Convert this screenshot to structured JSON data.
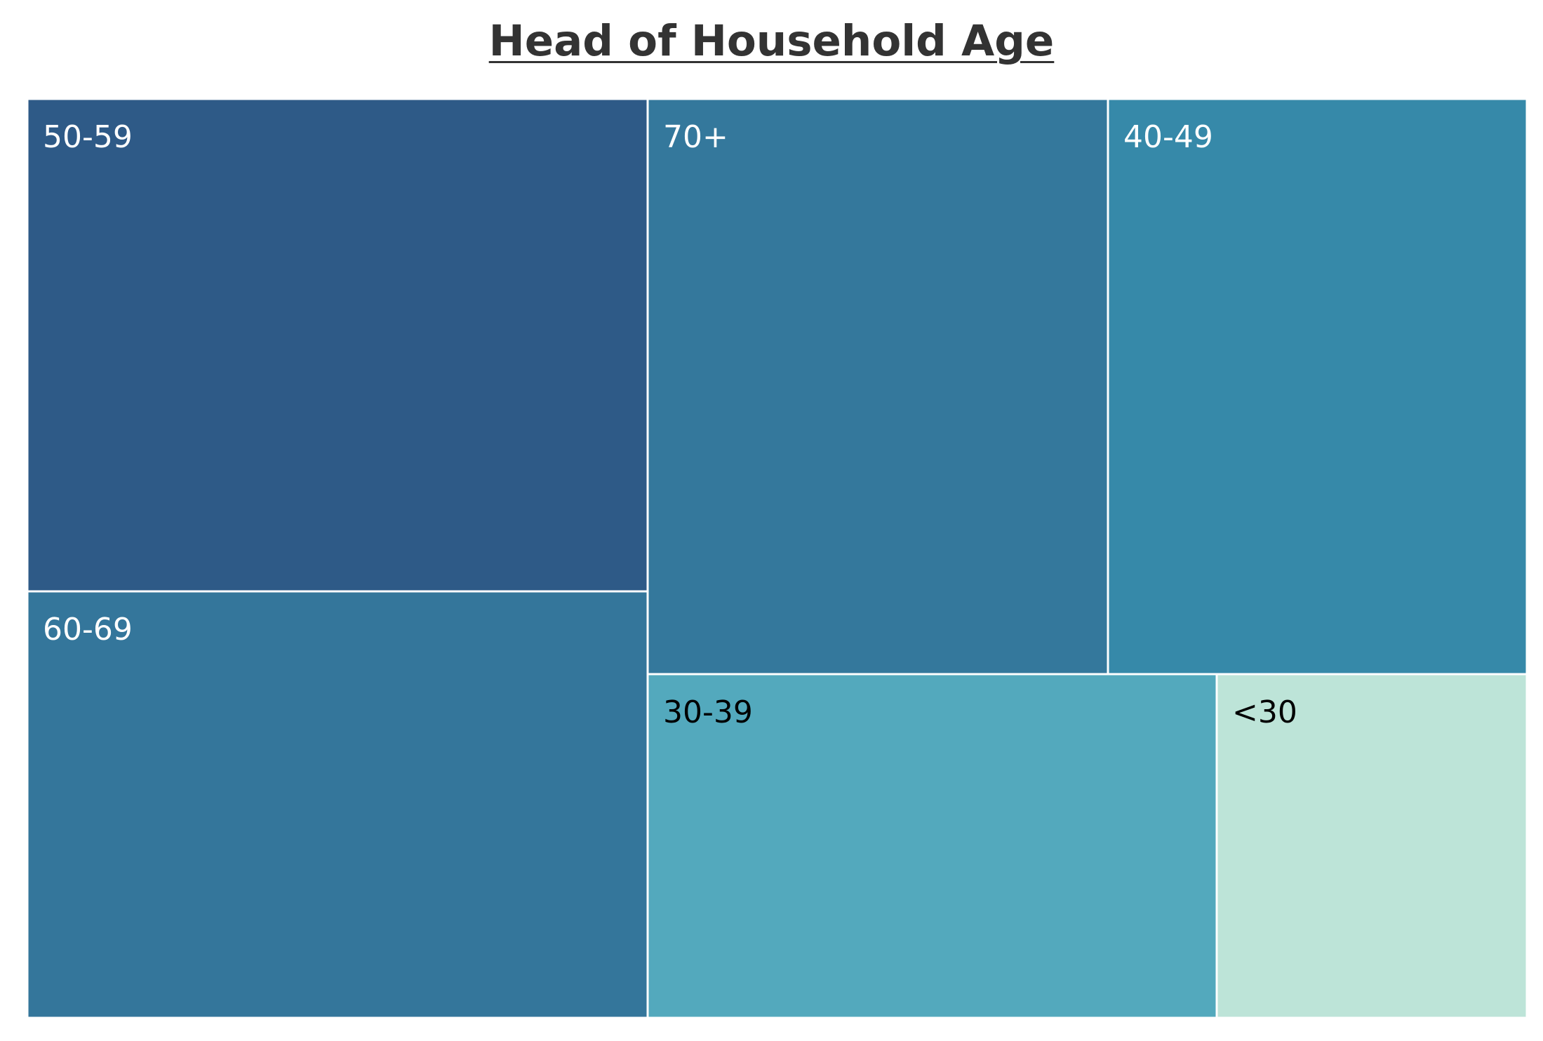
{
  "chart_data": {
    "type": "treemap",
    "title": "Head of Household Age",
    "tiles": [
      {
        "label": "50-59",
        "color": "#2e5a87",
        "text_color": "#ffffff"
      },
      {
        "label": "60-69",
        "color": "#34769b",
        "text_color": "#ffffff"
      },
      {
        "label": "70+",
        "color": "#34789c",
        "text_color": "#ffffff"
      },
      {
        "label": "40-49",
        "color": "#3689a9",
        "text_color": "#ffffff"
      },
      {
        "label": "30-39",
        "color": "#53a9bd",
        "text_color": "#000000"
      },
      {
        "label": "<30",
        "color": "#bde4d8",
        "text_color": "#000000"
      }
    ]
  }
}
